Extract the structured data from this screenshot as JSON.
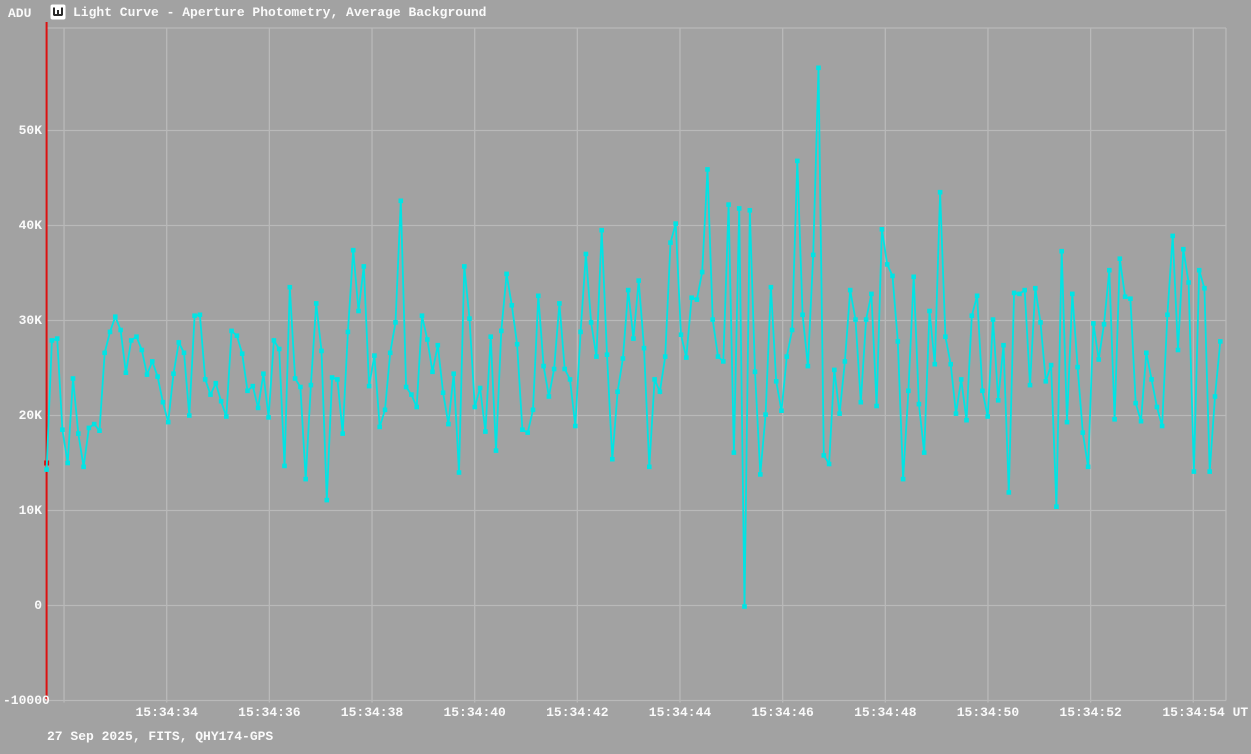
{
  "window": {
    "title": "Light Curve - Aperture Photometry, Average Background",
    "icon": "light-curve-icon"
  },
  "axes": {
    "y_unit": "ADU",
    "y_ticks": [
      {
        "label": "50K",
        "value": 50000
      },
      {
        "label": "40K",
        "value": 40000
      },
      {
        "label": "30K",
        "value": 30000
      },
      {
        "label": "20K",
        "value": 20000
      },
      {
        "label": "10K",
        "value": 10000
      },
      {
        "label": "0",
        "value": 0
      },
      {
        "label": "-10000",
        "value": -10000
      }
    ],
    "x_ticks": [
      {
        "label": "15:34:34",
        "second": 34
      },
      {
        "label": "15:34:36",
        "second": 36
      },
      {
        "label": "15:34:38",
        "second": 38
      },
      {
        "label": "15:34:40",
        "second": 40
      },
      {
        "label": "15:34:42",
        "second": 42
      },
      {
        "label": "15:34:44",
        "second": 44
      },
      {
        "label": "15:34:46",
        "second": 46
      },
      {
        "label": "15:34:48",
        "second": 48
      },
      {
        "label": "15:34:50",
        "second": 50
      },
      {
        "label": "15:34:52",
        "second": 52
      },
      {
        "label": "15:34:54 UT",
        "second": 54
      }
    ],
    "unlabeled_gridline_second": 32
  },
  "footer": {
    "info": "27 Sep 2025, FITS, QHY174-GPS"
  },
  "colors": {
    "background": "#a2a2a2",
    "grid": "#b9b9b9",
    "series": "#00e4e4",
    "cursor": "#dd1111",
    "text": "#fafafa",
    "icon_bg": "#ffffff",
    "icon_glyph": "#2b2b2b"
  },
  "cursor": {
    "time_s": 31.66,
    "value_adu": 15000
  },
  "chart_data": {
    "type": "line",
    "title": "Light Curve - Aperture Photometry, Average Background",
    "series_name": "aperture-photometry-average-background",
    "xlabel": "UT time (15:34:xx)",
    "ylabel": "ADU",
    "ylim": [
      -10000,
      60000
    ],
    "xlim_s": [
      31.66,
      54.8
    ],
    "grid": true,
    "marker": "square",
    "t_first": "15:34:31.66",
    "t0_s": 31.66,
    "dt_s": 0.103,
    "values_adu": [
      14300,
      27900,
      28100,
      18500,
      15000,
      23900,
      18100,
      14600,
      18700,
      19100,
      18400,
      26600,
      28800,
      30400,
      29000,
      24500,
      27900,
      28300,
      26900,
      24300,
      25700,
      24100,
      21400,
      19300,
      24400,
      27700,
      26600,
      20000,
      30500,
      30600,
      23800,
      22200,
      23400,
      21500,
      19900,
      28900,
      28400,
      26500,
      22600,
      23100,
      20800,
      24400,
      19800,
      27900,
      27000,
      14700,
      33500,
      23900,
      23000,
      13300,
      23200,
      31800,
      26800,
      11100,
      24000,
      23800,
      18100,
      28800,
      37400,
      31000,
      35700,
      23100,
      26300,
      18800,
      20600,
      26600,
      29800,
      42600,
      23000,
      22200,
      20900,
      30500,
      28000,
      24600,
      27400,
      22400,
      19100,
      24400,
      14000,
      35700,
      30200,
      20900,
      22900,
      18300,
      28300,
      16300,
      28900,
      34900,
      31600,
      27500,
      18500,
      18200,
      20600,
      32600,
      25200,
      22000,
      24900,
      31800,
      24900,
      23800,
      18900,
      28800,
      37000,
      29800,
      26200,
      39500,
      26400,
      15400,
      22500,
      26000,
      33200,
      28100,
      34200,
      27100,
      14600,
      23800,
      22500,
      26200,
      38200,
      40200,
      28500,
      26100,
      32400,
      32200,
      35100,
      45900,
      30100,
      26200,
      25700,
      42200,
      16100,
      41800,
      -100,
      41600,
      24600,
      13800,
      20100,
      33500,
      23600,
      20500,
      26200,
      29000,
      46800,
      30600,
      25200,
      36900,
      56600,
      15800,
      14900,
      24800,
      20200,
      25700,
      33200,
      30100,
      21400,
      30100,
      32800,
      21000,
      39600,
      35900,
      34700,
      27800,
      13300,
      22600,
      34600,
      21200,
      16100,
      31000,
      25400,
      43500,
      28300,
      25400,
      20200,
      23800,
      19500,
      30500,
      32600,
      22600,
      19900,
      30100,
      21600,
      27400,
      11900,
      32900,
      32800,
      33200,
      23200,
      33400,
      29800,
      23600,
      25300,
      10400,
      37300,
      19300,
      32800,
      25100,
      18200,
      14600,
      29700,
      25900,
      29600,
      35300,
      19600,
      36500,
      32500,
      32300,
      21300,
      19400,
      26600,
      23800,
      20900,
      18900,
      30600,
      38900,
      26900,
      37500,
      34000,
      14100,
      35300,
      33400,
      14100,
      22000,
      27800
    ]
  }
}
